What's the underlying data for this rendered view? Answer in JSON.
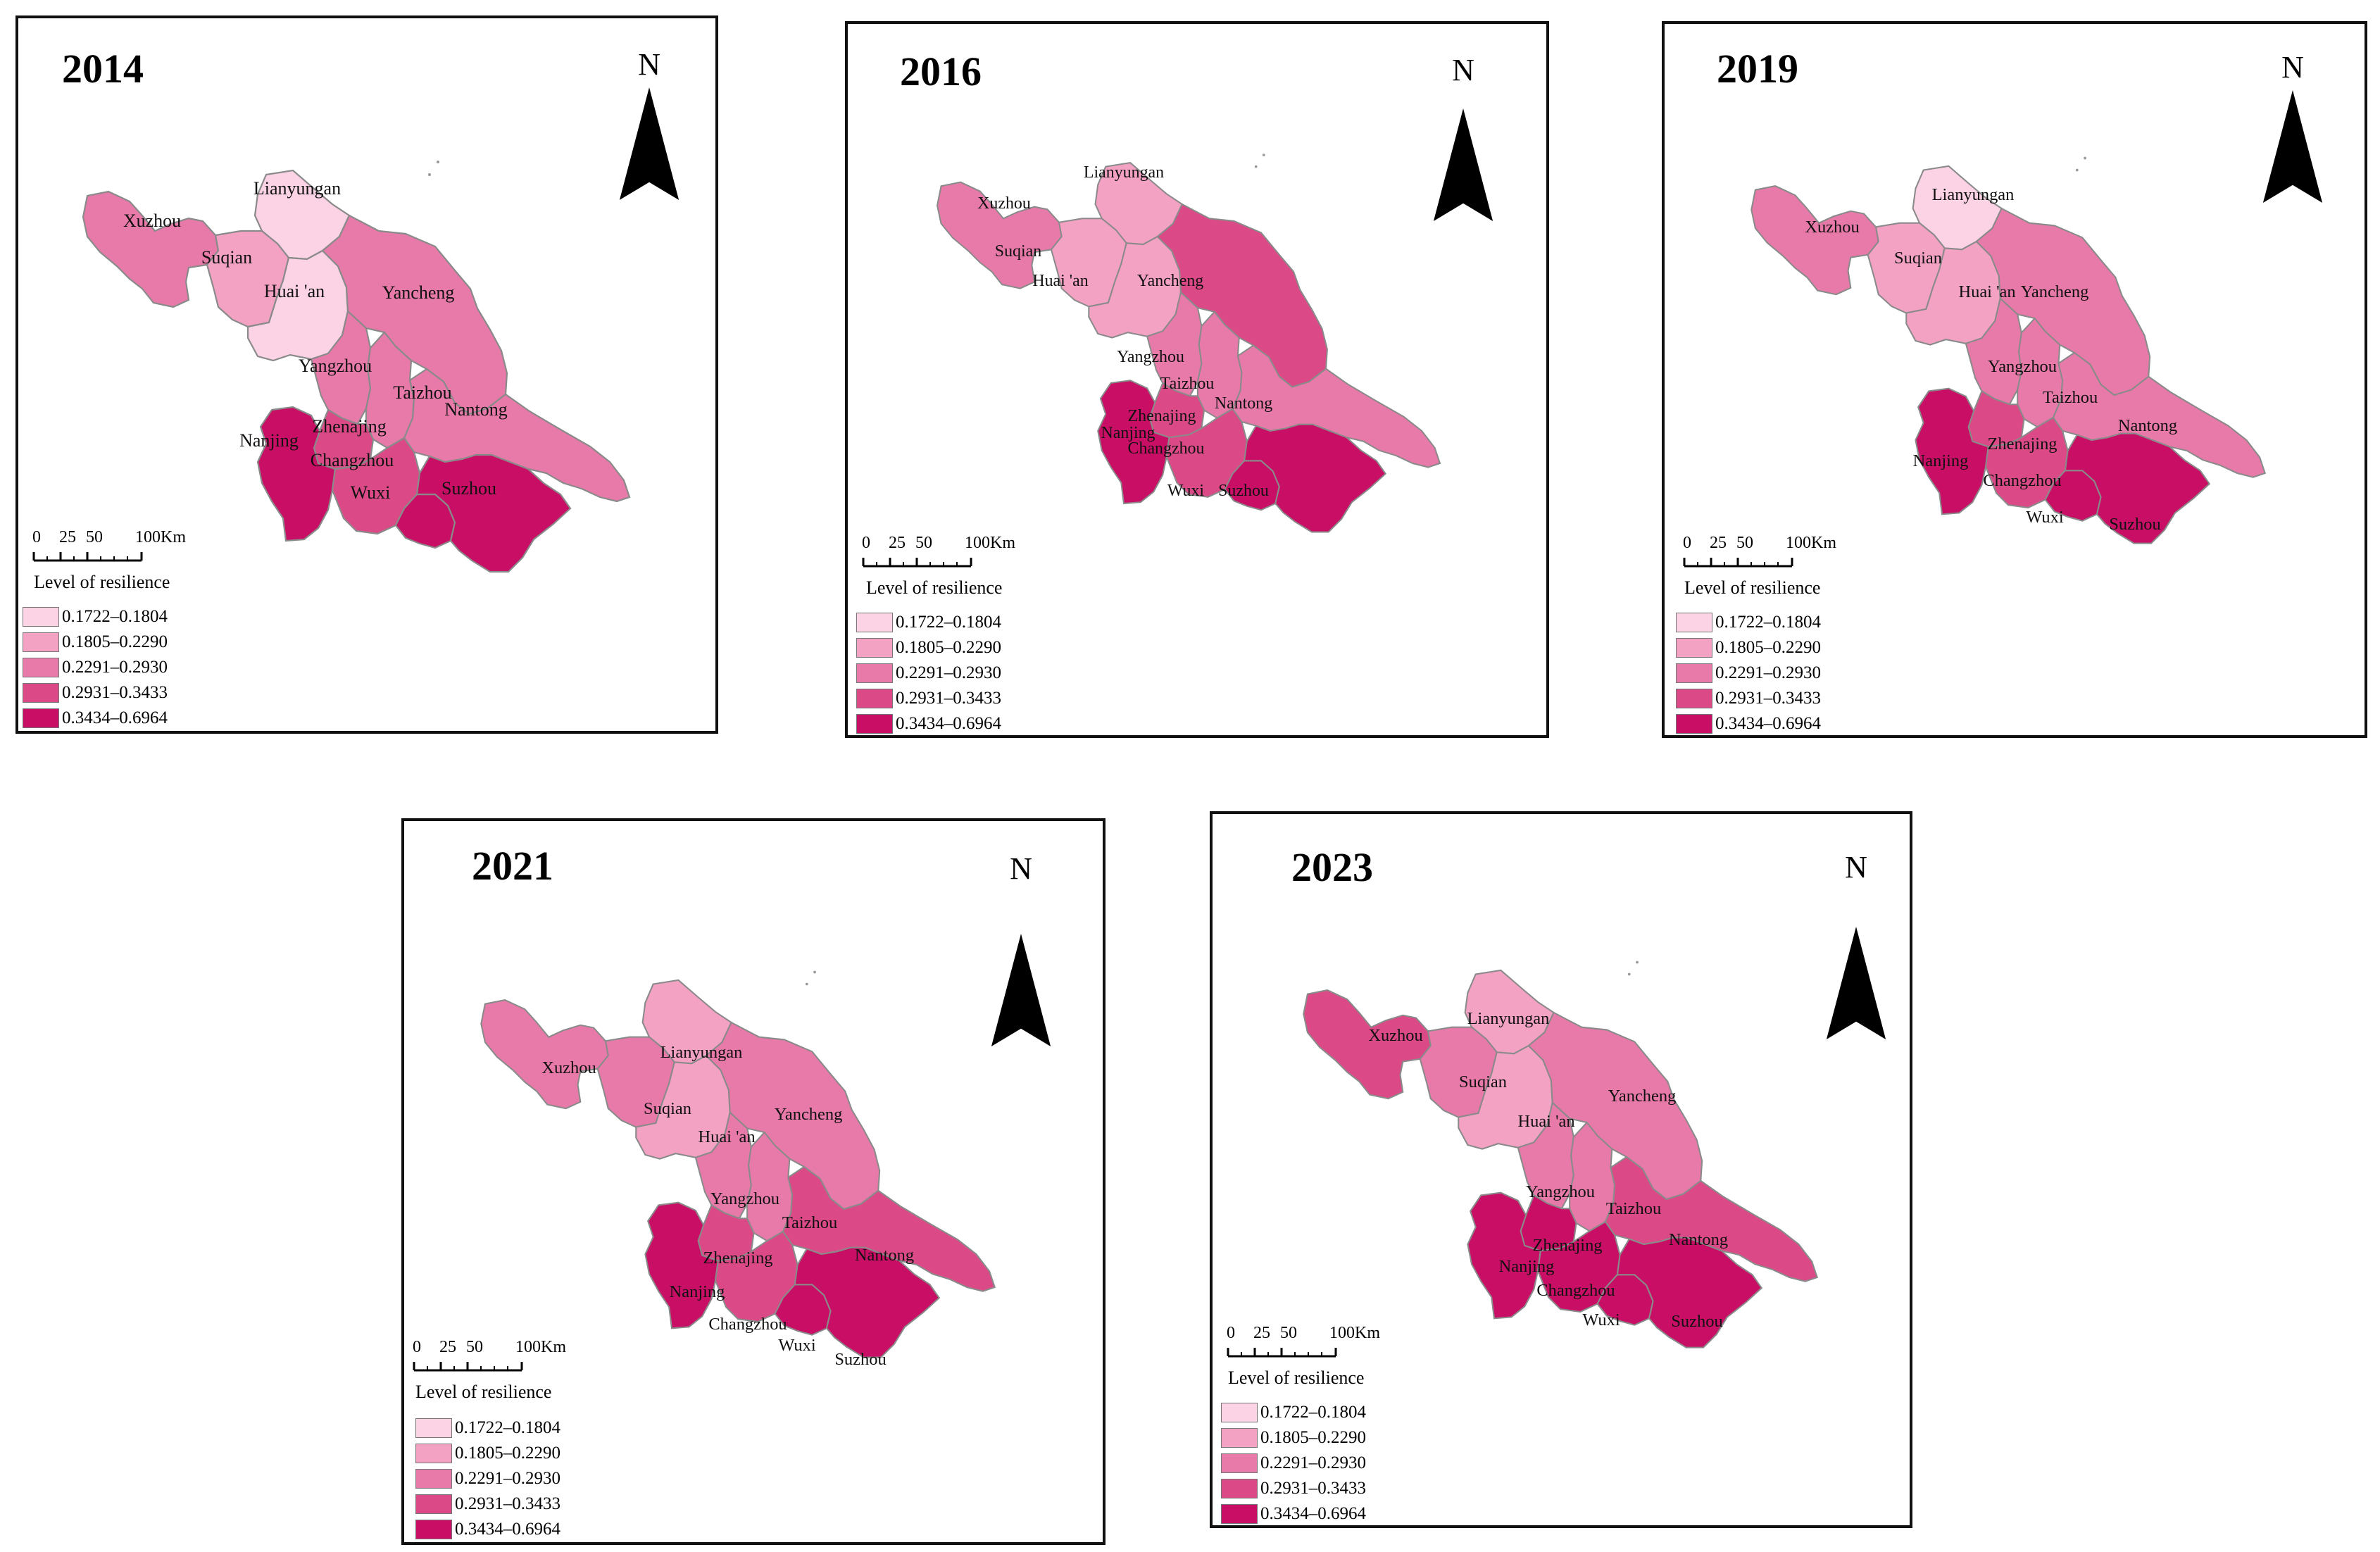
{
  "colors": {
    "c1": "#fbd3e4",
    "c2": "#f3a2c4",
    "c3": "#e87aa9",
    "c4": "#db4a87",
    "c5": "#c80f65"
  },
  "legend": {
    "title": "Level of resilience",
    "classes": [
      {
        "label": "0.1722–0.1804",
        "color": "#fbd3e4"
      },
      {
        "label": "0.1805–0.2290",
        "color": "#f3a2c4"
      },
      {
        "label": "0.2291–0.2930",
        "color": "#e87aa9"
      },
      {
        "label": "0.2931–0.3433",
        "color": "#db4a87"
      },
      {
        "label": "0.3434–0.6964",
        "color": "#c80f65"
      }
    ]
  },
  "north_label": "N",
  "scale_bar": {
    "ticks": [
      "0",
      "25",
      "50",
      "100"
    ],
    "unit": "Km"
  },
  "cities": [
    "Xuzhou",
    "Lianyungan",
    "Suqian",
    "Huai 'an",
    "Yancheng",
    "Yangzhou",
    "Taizhou",
    "Nantong",
    "Zhenajing",
    "Nanjing",
    "Changzhou",
    "Wuxi",
    "Suzhou"
  ],
  "maps": [
    {
      "year": "2014",
      "levels": {
        "Xuzhou": 3,
        "Lianyungan": 1,
        "Suqian": 2,
        "Huai 'an": 1,
        "Yancheng": 3,
        "Yangzhou": 3,
        "Taizhou": 3,
        "Nantong": 3,
        "Zhenajing": 4,
        "Nanjing": 5,
        "Changzhou": 4,
        "Wuxi": 5,
        "Suzhou": 5
      }
    },
    {
      "year": "2016",
      "levels": {
        "Xuzhou": 3,
        "Lianyungan": 2,
        "Suqian": 2,
        "Huai 'an": 2,
        "Yancheng": 4,
        "Yangzhou": 3,
        "Taizhou": 3,
        "Nantong": 3,
        "Zhenajing": 4,
        "Nanjing": 5,
        "Changzhou": 4,
        "Wuxi": 5,
        "Suzhou": 5
      }
    },
    {
      "year": "2019",
      "levels": {
        "Xuzhou": 3,
        "Lianyungan": 1,
        "Suqian": 2,
        "Huai 'an": 2,
        "Yancheng": 3,
        "Yangzhou": 3,
        "Taizhou": 3,
        "Nantong": 3,
        "Zhenajing": 4,
        "Nanjing": 5,
        "Changzhou": 4,
        "Wuxi": 5,
        "Suzhou": 5
      }
    },
    {
      "year": "2021",
      "levels": {
        "Xuzhou": 3,
        "Lianyungan": 2,
        "Suqian": 3,
        "Huai 'an": 2,
        "Yancheng": 3,
        "Yangzhou": 3,
        "Taizhou": 3,
        "Nantong": 4,
        "Zhenajing": 4,
        "Nanjing": 5,
        "Changzhou": 4,
        "Wuxi": 5,
        "Suzhou": 5
      }
    },
    {
      "year": "2023",
      "levels": {
        "Xuzhou": 4,
        "Lianyungan": 2,
        "Suqian": 3,
        "Huai 'an": 2,
        "Yancheng": 3,
        "Yangzhou": 3,
        "Taizhou": 3,
        "Nantong": 4,
        "Zhenajing": 5,
        "Nanjing": 5,
        "Changzhou": 5,
        "Wuxi": 5,
        "Suzhou": 5
      }
    }
  ]
}
